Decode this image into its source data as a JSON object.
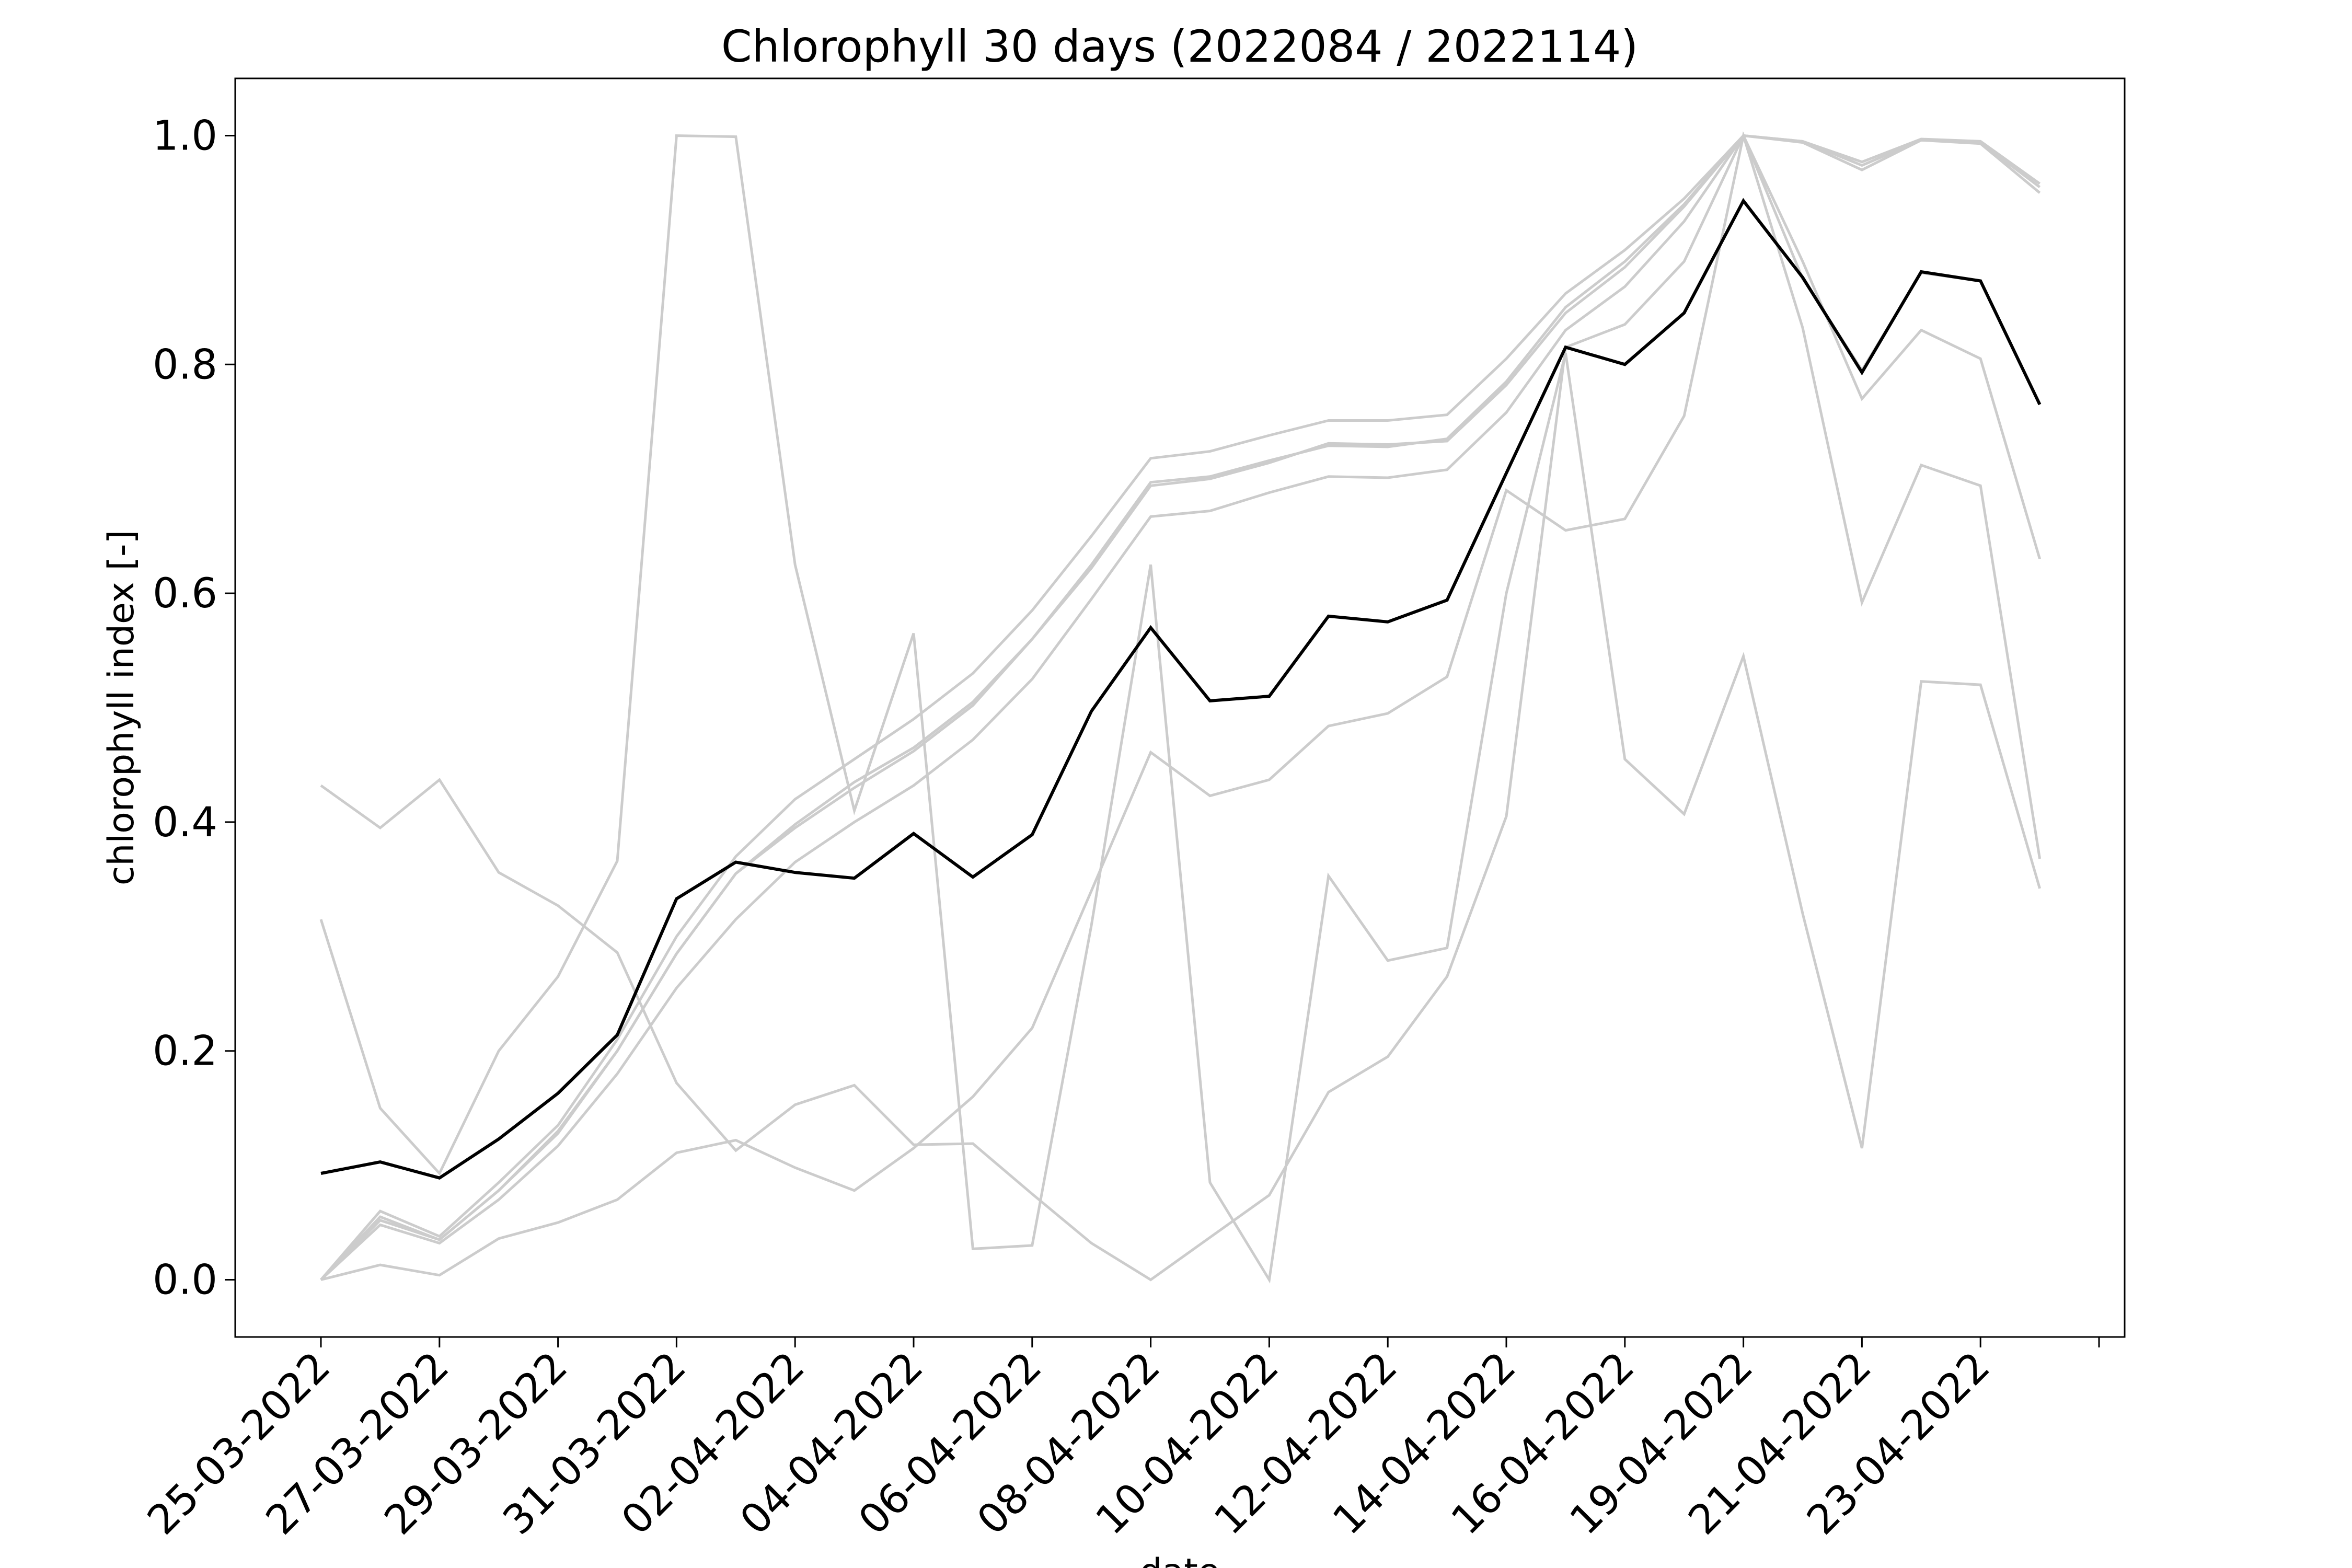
{
  "chart_data": {
    "type": "line",
    "title": "Chlorophyll 30 days (2022084 / 2022114)",
    "xlabel": "date",
    "ylabel": "chlorophyll index [-]",
    "ylim": [
      -0.05,
      1.05
    ],
    "yticks": [
      0.0,
      0.2,
      0.4,
      0.6,
      0.8,
      1.0
    ],
    "ytick_labels": [
      "0.0",
      "0.2",
      "0.4",
      "0.6",
      "0.8",
      "1.0"
    ],
    "xtick_labels": [
      "25-03-2022",
      "27-03-2022",
      "29-03-2022",
      "31-03-2022",
      "02-04-2022",
      "04-04-2022",
      "06-04-2022",
      "08-04-2022",
      "10-04-2022",
      "12-04-2022",
      "14-04-2022",
      "16-04-2022",
      "19-04-2022",
      "21-04-2022",
      "23-04-2022",
      ""
    ],
    "grid": false,
    "legend": "none",
    "colors": {
      "individual": "#cccccc",
      "mean": "#000000"
    },
    "series": [
      {
        "role": "individual",
        "values": [
          0.0,
          0.06,
          0.038,
          0.085,
          0.135,
          0.21,
          0.3,
          0.37,
          0.42,
          0.455,
          0.49,
          0.53,
          0.585,
          0.65,
          0.718,
          0.724,
          0.738,
          0.751,
          0.751,
          0.756,
          0.805,
          0.862,
          0.9,
          0.945,
          1.0,
          0.995,
          0.977,
          0.997,
          0.995,
          0.958
        ]
      },
      {
        "role": "individual",
        "values": [
          0.0,
          0.055,
          0.035,
          0.078,
          0.128,
          0.2,
          0.285,
          0.355,
          0.398,
          0.435,
          0.465,
          0.505,
          0.56,
          0.625,
          0.697,
          0.702,
          0.716,
          0.729,
          0.728,
          0.735,
          0.785,
          0.85,
          0.89,
          0.94,
          1.0,
          0.995,
          0.974,
          0.996,
          0.994,
          0.955
        ]
      },
      {
        "role": "individual",
        "values": [
          0.0,
          0.052,
          0.035,
          0.078,
          0.13,
          0.2,
          0.285,
          0.355,
          0.395,
          0.43,
          0.462,
          0.502,
          0.56,
          0.622,
          0.694,
          0.7,
          0.714,
          0.731,
          0.73,
          0.733,
          0.782,
          0.845,
          0.885,
          0.938,
          1.0,
          0.994,
          0.97,
          0.996,
          0.993,
          0.95
        ]
      },
      {
        "role": "individual",
        "values": [
          0.0,
          0.048,
          0.032,
          0.07,
          0.117,
          0.18,
          0.255,
          0.315,
          0.365,
          0.4,
          0.432,
          0.472,
          0.525,
          0.595,
          0.667,
          0.672,
          0.688,
          0.702,
          0.701,
          0.708,
          0.758,
          0.83,
          0.868,
          0.925,
          1.0,
          0.89,
          0.77,
          0.83,
          0.805,
          0.63
        ]
      },
      {
        "role": "individual",
        "values": [
          0.315,
          0.15,
          0.093,
          0.2,
          0.265,
          0.366,
          1.0,
          0.999,
          0.625,
          0.41,
          0.565,
          0.027,
          0.03,
          0.31,
          0.625,
          0.085,
          0.0,
          0.353,
          0.279,
          0.29,
          0.6,
          0.81,
          0.455,
          0.407,
          0.545,
          0.32,
          0.115,
          0.523,
          0.52,
          0.342
        ]
      },
      {
        "role": "individual",
        "values": [
          0.432,
          0.395,
          0.437,
          0.356,
          0.327,
          0.286,
          0.172,
          0.113,
          0.153,
          0.17,
          0.118,
          0.119,
          0.075,
          0.032,
          0.0,
          0.037,
          0.074,
          0.164,
          0.195,
          0.265,
          0.405,
          0.815,
          0.835,
          0.89,
          1.0,
          0.832,
          0.592,
          0.712,
          0.694,
          0.368
        ]
      },
      {
        "role": "individual",
        "values": [
          0.0,
          0.013,
          0.004,
          0.036,
          0.05,
          0.07,
          0.111,
          0.122,
          0.098,
          0.078,
          0.115,
          0.16,
          0.22,
          0.34,
          0.461,
          0.423,
          0.437,
          0.484,
          0.495,
          0.527,
          0.69,
          0.655,
          0.665,
          0.755,
          1.0,
          0.875,
          0.795,
          0.88,
          0.873,
          0.765
        ]
      },
      {
        "role": "mean",
        "values": [
          0.093,
          0.103,
          0.089,
          0.123,
          0.163,
          0.214,
          0.333,
          0.365,
          0.356,
          0.351,
          0.39,
          0.352,
          0.389,
          0.497,
          0.57,
          0.506,
          0.51,
          0.58,
          0.575,
          0.594,
          0.705,
          0.815,
          0.8,
          0.845,
          0.943,
          0.876,
          0.793,
          0.881,
          0.873,
          0.765
        ]
      }
    ]
  }
}
